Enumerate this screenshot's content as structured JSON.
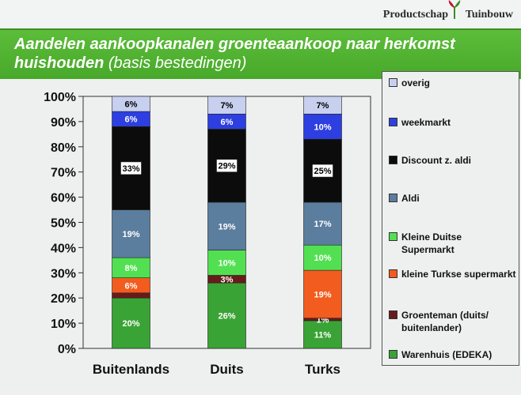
{
  "header": {
    "brand_left": "Productschap",
    "brand_right": "Tuinbouw",
    "title_main": "Aandelen aankoopkanalen groenteaankoop naar herkomst huishouden",
    "title_sub": " (basis bestedingen)"
  },
  "chart_data": {
    "type": "bar",
    "stacked": true,
    "normalized": true,
    "categories": [
      "Buitenlands",
      "Duits",
      "Turks"
    ],
    "y_ticks": [
      "0%",
      "10%",
      "20%",
      "30%",
      "40%",
      "50%",
      "60%",
      "70%",
      "80%",
      "90%",
      "100%"
    ],
    "ylim": [
      0,
      100
    ],
    "grid": false,
    "legend_position": "right",
    "series": [
      {
        "name": "Warenhuis (EDEKA)",
        "color": "#3aa335",
        "text_color": "#ffffff",
        "values": [
          20,
          26,
          11
        ],
        "labels": [
          "20%",
          "26%",
          "11%"
        ]
      },
      {
        "name": "Groenteman (duits/ buitenlander)",
        "color": "#6a1a1a",
        "text_color": "#ffffff",
        "values": [
          2,
          3,
          1
        ],
        "labels": [
          "",
          "3%",
          "1%"
        ]
      },
      {
        "name": "kleine Turkse supermarkt",
        "color": "#f25c1e",
        "text_color": "#ffffff",
        "values": [
          6,
          0,
          19
        ],
        "labels": [
          "6%",
          "",
          "19%"
        ]
      },
      {
        "name": "Kleine Duitse Supermarkt",
        "color": "#52e052",
        "text_color": "#ffffff",
        "values": [
          8,
          10,
          10
        ],
        "labels": [
          "8%",
          "10%",
          "10%"
        ]
      },
      {
        "name": "Aldi",
        "color": "#5b7d9e",
        "text_color": "#ffffff",
        "values": [
          19,
          19,
          17
        ],
        "labels": [
          "19%",
          "19%",
          "17%"
        ]
      },
      {
        "name": "Discount z. aldi",
        "color": "#0c0c0c",
        "text_color": "#000000",
        "label_box": true,
        "values": [
          33,
          29,
          25
        ],
        "labels": [
          "33%",
          "29%",
          "25%"
        ]
      },
      {
        "name": "weekmarkt",
        "color": "#2d3fe0",
        "text_color": "#ffffff",
        "values": [
          6,
          6,
          10
        ],
        "labels": [
          "6%",
          "6%",
          "10%"
        ]
      },
      {
        "name": "overig",
        "color": "#c7d0ee",
        "text_color": "#000000",
        "values": [
          6,
          7,
          7
        ],
        "labels": [
          "6%",
          "7%",
          "7%"
        ]
      }
    ]
  }
}
